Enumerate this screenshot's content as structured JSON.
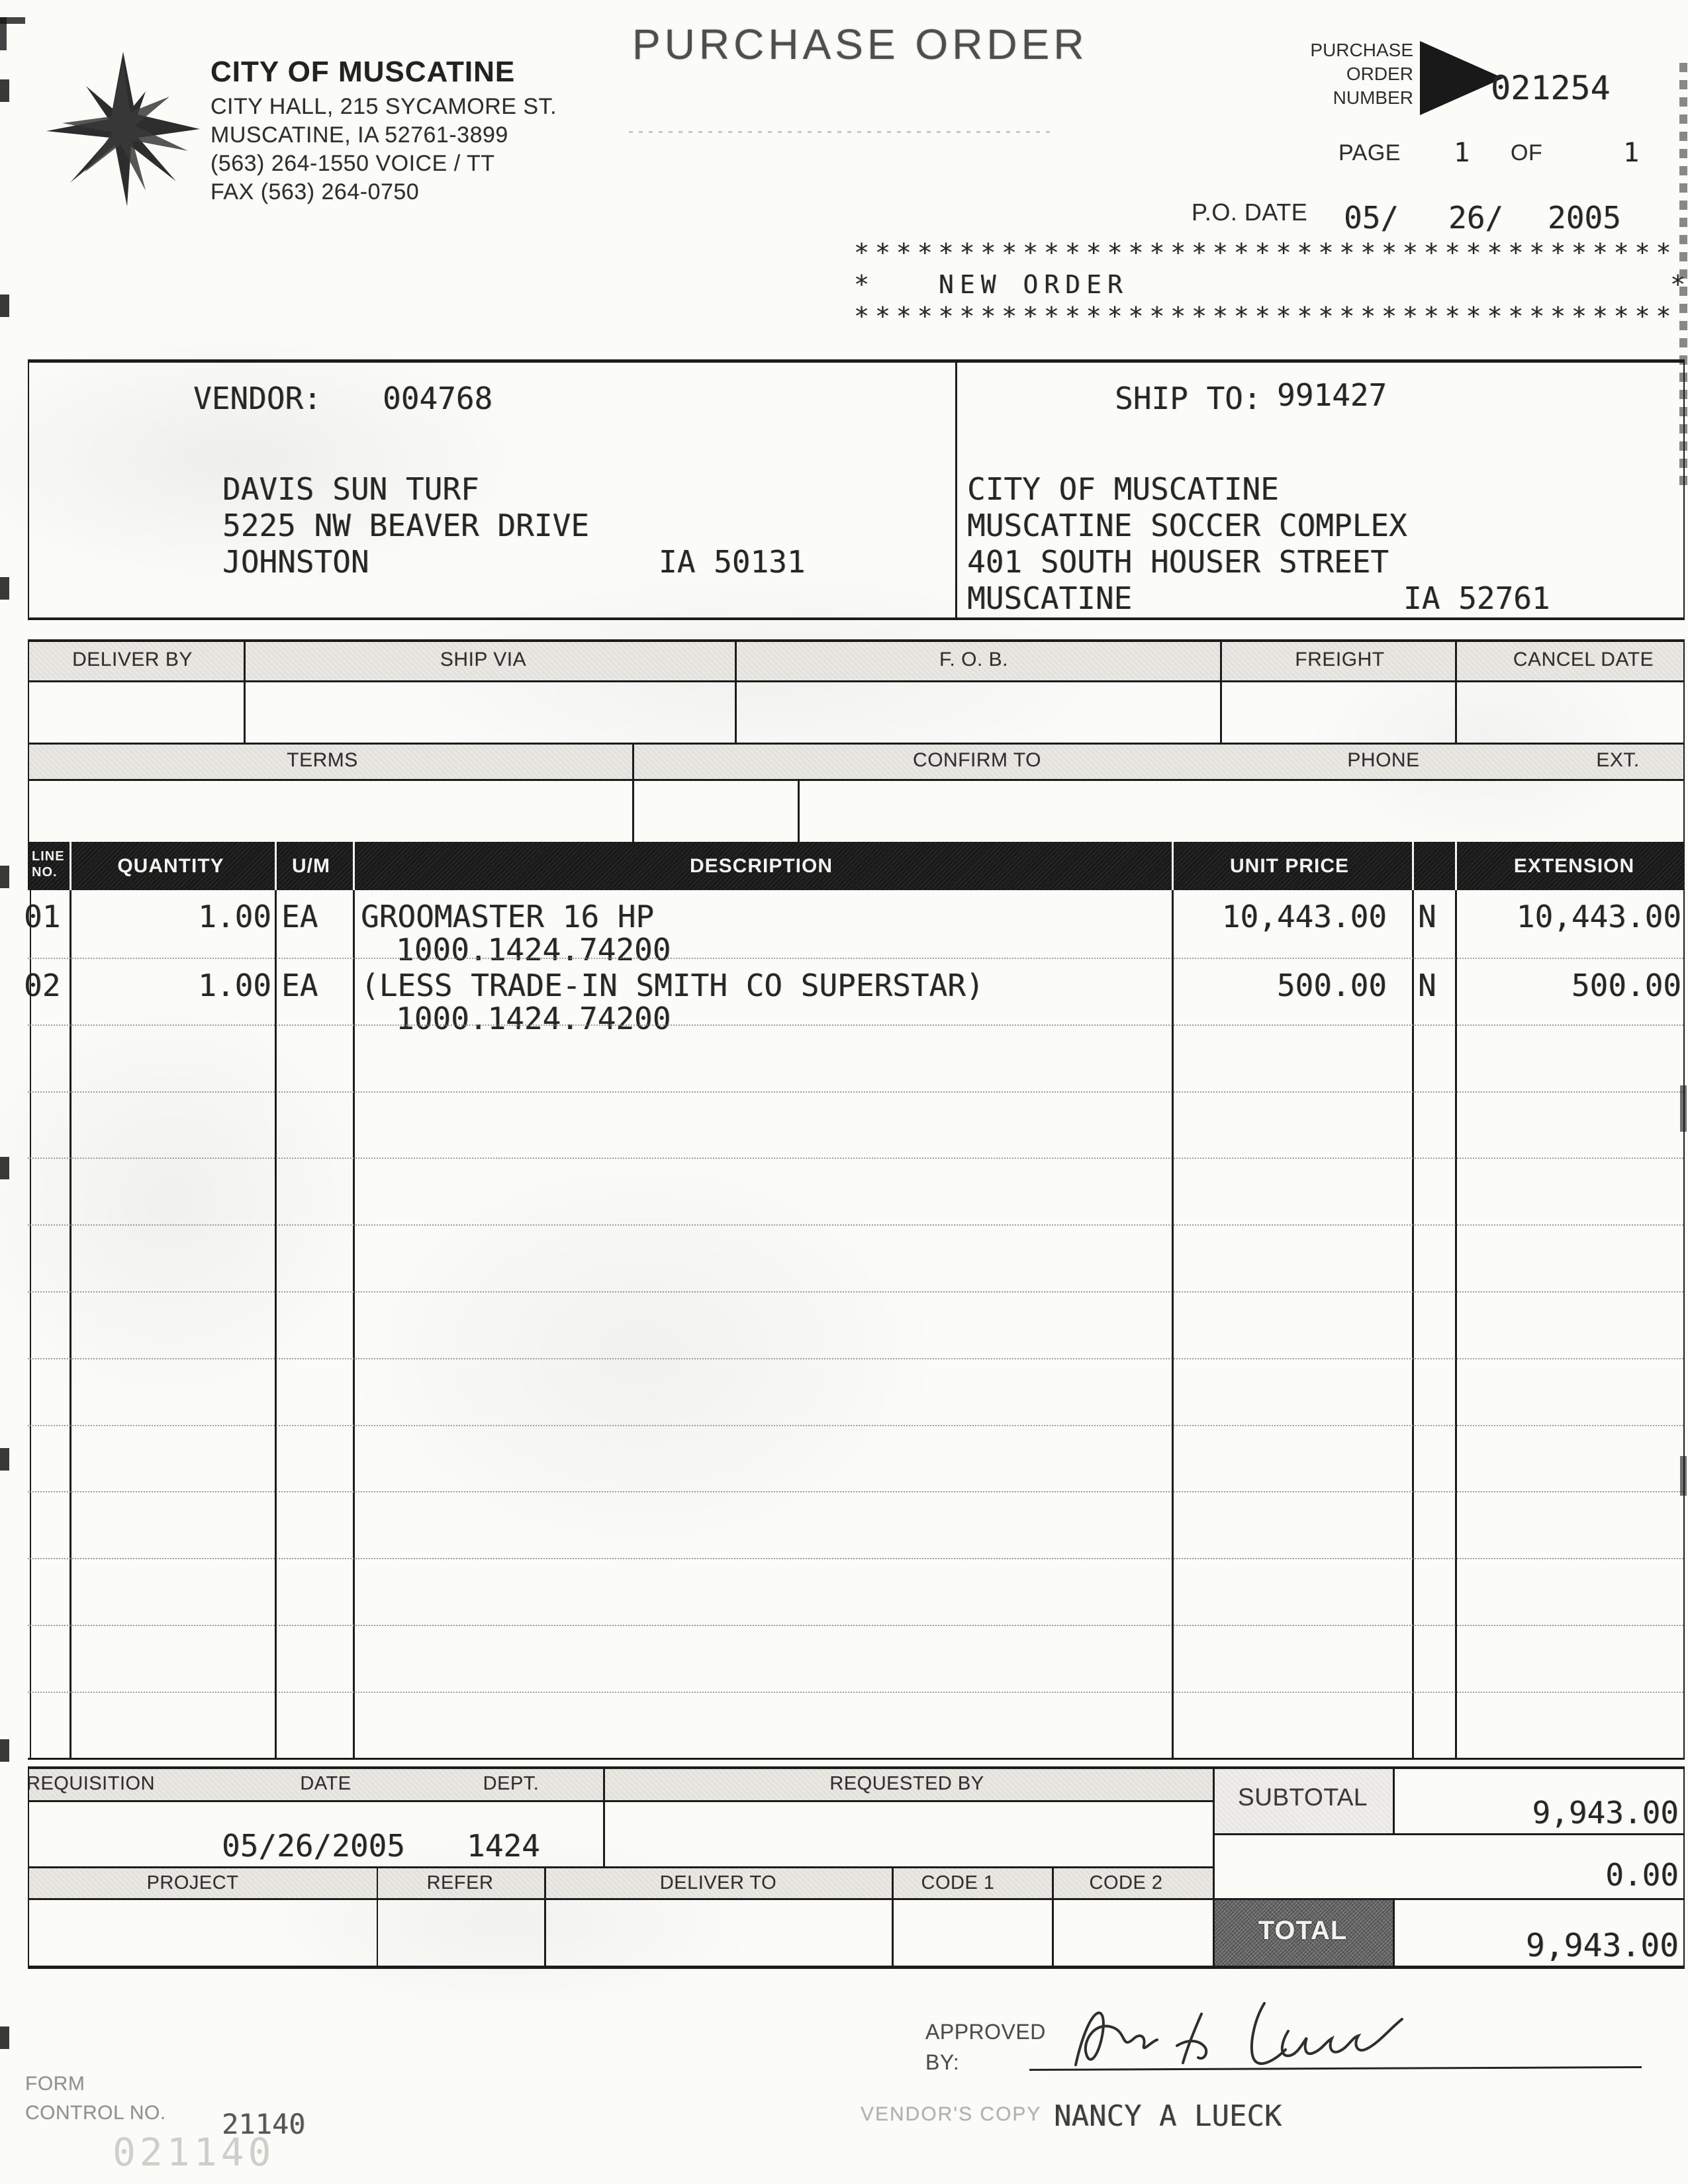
{
  "org": {
    "name": "CITY OF MUSCATINE",
    "address_lines": [
      "CITY HALL, 215 SYCAMORE ST.",
      "MUSCATINE, IA 52761-3899",
      "(563) 264-1550  VOICE / TT",
      "FAX (563) 264-0750"
    ]
  },
  "header": {
    "title": "PURCHASE ORDER",
    "po_number_label_lines": [
      "PURCHASE",
      "ORDER",
      "NUMBER"
    ],
    "po_number": "021254",
    "page_label": "PAGE",
    "page_value": "1",
    "of_label": "OF",
    "of_value": "1",
    "po_date_label": "P.O. DATE",
    "po_date_month": "05/",
    "po_date_day": "26/",
    "po_date_year": "2005"
  },
  "banner": {
    "stars": "***************************************",
    "left_star": "*",
    "text": "NEW ORDER",
    "right_star": "*"
  },
  "vendor": {
    "label": "VENDOR:",
    "code": "004768",
    "line1": "DAVIS SUN TURF",
    "line2": "5225 NW BEAVER DRIVE",
    "city": "JOHNSTON",
    "state_zip": "IA 50131"
  },
  "ship_to": {
    "label": "SHIP TO:",
    "code": "991427",
    "line1": "CITY OF MUSCATINE",
    "line2": "MUSCATINE SOCCER COMPLEX",
    "line3": "401 SOUTH HOUSER STREET",
    "city": "MUSCATINE",
    "state_zip": "IA 52761"
  },
  "shipping": {
    "deliver_by": "DELIVER BY",
    "ship_via": "SHIP VIA",
    "fob": "F. O. B.",
    "freight": "FREIGHT",
    "cancel_date": "CANCEL DATE",
    "terms": "TERMS",
    "confirm_to": "CONFIRM TO",
    "phone": "PHONE",
    "ext": "EXT."
  },
  "items_table": {
    "headers": {
      "line": "LINE",
      "no": "NO.",
      "quantity": "QUANTITY",
      "um": "U/M",
      "description": "DESCRIPTION",
      "unit_price": "UNIT PRICE",
      "extension": "EXTENSION"
    },
    "items": [
      {
        "line": "01",
        "quantity": "1.00",
        "um": "EA",
        "description": "GROOMASTER 16 HP",
        "account": "1000.1424.74200",
        "unit_price": "10,443.00",
        "tax_flag": "N",
        "extension": "10,443.00"
      },
      {
        "line": "02",
        "quantity": "1.00",
        "um": "EA",
        "description": "(LESS TRADE-IN SMITH CO SUPERSTAR)",
        "account": "1000.1424.74200",
        "unit_price": "500.00",
        "tax_flag": "N",
        "extension": "500.00"
      }
    ]
  },
  "summary": {
    "requisition_label": "REQUISITION",
    "date_label": "DATE",
    "dept_label": "DEPT.",
    "requested_by_label": "REQUESTED BY",
    "date_value": "05/26/2005",
    "dept_value": "1424",
    "project_label": "PROJECT",
    "refer_label": "REFER",
    "deliver_to_label": "DELIVER TO",
    "code1_label": "CODE 1",
    "code2_label": "CODE 2",
    "subtotal_label": "SUBTOTAL",
    "subtotal_value": "9,943.00",
    "misc_value": "0.00",
    "total_label": "TOTAL",
    "total_value": "9,943.00"
  },
  "approval": {
    "approved_label": "APPROVED",
    "by_label": "BY:",
    "printed_name": "NANCY A LUECK",
    "copy_label": "VENDOR'S COPY"
  },
  "footer": {
    "form_label": "FORM",
    "control_label": "CONTROL NO.",
    "control_number": "21140",
    "stamp_number": "021140"
  },
  "colors": {
    "ink": "#1d1d1d",
    "table_header_bg": "#181818",
    "total_box_bg": "#6e6e6e",
    "strip_bg": "#e9e8e3"
  }
}
